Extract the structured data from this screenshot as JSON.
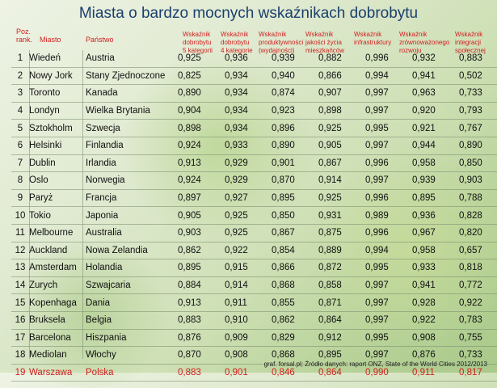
{
  "title": "Miasta o bardzo mocnych wskaźnikach dobrobytu",
  "headers": {
    "rank": "Poz. rank.",
    "rank_line1": "Poz.",
    "rank_line2": "rank.",
    "city": "Miasto",
    "country": "Państwo",
    "h1": [
      "Wskaźnik",
      "dobrobytu",
      "5 kategorii"
    ],
    "h2": [
      "Wskaźnik",
      "dobrobytu",
      "4 kategorie"
    ],
    "h3": [
      "Wskaźnik",
      "produktywności",
      "(wydajności)"
    ],
    "h4": [
      "Wskaźnik",
      "jakości życia",
      "mieszkańców"
    ],
    "h5": [
      "Wskaźnik",
      "infrastruktury"
    ],
    "h6": [
      "Wskaźnik",
      "zrównoważonego",
      "rozwoju"
    ],
    "h7": [
      "Wskaźnik",
      "integracji",
      "społecznej"
    ]
  },
  "rows": [
    {
      "rank": "1",
      "city": "Wiedeń",
      "country": "Austria",
      "v": [
        "0,925",
        "0,936",
        "0,939",
        "0,882",
        "0,996",
        "0,932",
        "0,883"
      ]
    },
    {
      "rank": "2",
      "city": "Nowy Jork",
      "country": "Stany Zjednoczone",
      "v": [
        "0,825",
        "0,934",
        "0,940",
        "0,866",
        "0,994",
        "0,941",
        "0,502"
      ]
    },
    {
      "rank": "3",
      "city": "Toronto",
      "country": "Kanada",
      "v": [
        "0,890",
        "0,934",
        "0,874",
        "0,907",
        "0,997",
        "0,963",
        "0,733"
      ]
    },
    {
      "rank": "4",
      "city": "Londyn",
      "country": "Wielka Brytania",
      "v": [
        "0,904",
        "0,934",
        "0,923",
        "0,898",
        "0,997",
        "0,920",
        "0,793"
      ]
    },
    {
      "rank": "5",
      "city": "Sztokholm",
      "country": "Szwecja",
      "v": [
        "0,898",
        "0,934",
        "0,896",
        "0,925",
        "0,995",
        "0,921",
        "0,767"
      ]
    },
    {
      "rank": "6",
      "city": "Helsinki",
      "country": "Finlandia",
      "v": [
        "0,924",
        "0,933",
        "0,890",
        "0,905",
        "0,997",
        "0,944",
        "0,890"
      ]
    },
    {
      "rank": "7",
      "city": "Dublin",
      "country": "Irlandia",
      "v": [
        "0,913",
        "0,929",
        "0,901",
        "0,867",
        "0,996",
        "0,958",
        "0,850"
      ]
    },
    {
      "rank": "8",
      "city": "Oslo",
      "country": "Norwegia",
      "v": [
        "0,924",
        "0,929",
        "0,870",
        "0,914",
        "0,997",
        "0,939",
        "0,903"
      ]
    },
    {
      "rank": "9",
      "city": "Paryż",
      "country": "Francja",
      "v": [
        "0,897",
        "0,927",
        "0,895",
        "0,925",
        "0,996",
        "0,895",
        "0,788"
      ]
    },
    {
      "rank": "10",
      "city": "Tokio",
      "country": "Japonia",
      "v": [
        "0,905",
        "0,925",
        "0,850",
        "0,931",
        "0,989",
        "0,936",
        "0,828"
      ]
    },
    {
      "rank": "11",
      "city": "Melbourne",
      "country": "Australia",
      "v": [
        "0,903",
        "0,925",
        "0,867",
        "0,875",
        "0,996",
        "0,967",
        "0,820"
      ]
    },
    {
      "rank": "12",
      "city": "Auckland",
      "country": "Nowa Zelandia",
      "v": [
        "0,862",
        "0,922",
        "0,854",
        "0,889",
        "0,994",
        "0,958",
        "0,657"
      ]
    },
    {
      "rank": "13",
      "city": "Amsterdam",
      "country": "Holandia",
      "v": [
        "0,895",
        "0,915",
        "0,866",
        "0,872",
        "0,995",
        "0,933",
        "0,818"
      ]
    },
    {
      "rank": "14",
      "city": "Zurych",
      "country": "Szwajcaria",
      "v": [
        "0,884",
        "0,914",
        "0,868",
        "0,858",
        "0,997",
        "0,941",
        "0,772"
      ]
    },
    {
      "rank": "15",
      "city": "Kopenhaga",
      "country": "Dania",
      "v": [
        "0,913",
        "0,911",
        "0,855",
        "0,871",
        "0,997",
        "0,928",
        "0,922"
      ]
    },
    {
      "rank": "16",
      "city": "Bruksela",
      "country": "Belgia",
      "v": [
        "0,883",
        "0,910",
        "0,862",
        "0,864",
        "0,997",
        "0,922",
        "0,783"
      ]
    },
    {
      "rank": "17",
      "city": "Barcelona",
      "country": "Hiszpania",
      "v": [
        "0,876",
        "0,909",
        "0,829",
        "0,912",
        "0,995",
        "0,908",
        "0,755"
      ]
    },
    {
      "rank": "18",
      "city": "Mediolan",
      "country": "Włochy",
      "v": [
        "0,870",
        "0,908",
        "0,868",
        "0,895",
        "0,997",
        "0,876",
        "0,733"
      ]
    },
    {
      "rank": "19",
      "city": "Warszawa",
      "country": "Polska",
      "v": [
        "0,883",
        "0,901",
        "0,846",
        "0,864",
        "0,990",
        "0,911",
        "0,817"
      ],
      "highlight": true
    }
  ],
  "footnote": "graf. forsal.pl; Źródło danych: raport ONZ, State of the World Cities 2012/2013",
  "colors": {
    "title": "#1b3f6e",
    "header": "#d02020",
    "highlight": "#d02020"
  }
}
